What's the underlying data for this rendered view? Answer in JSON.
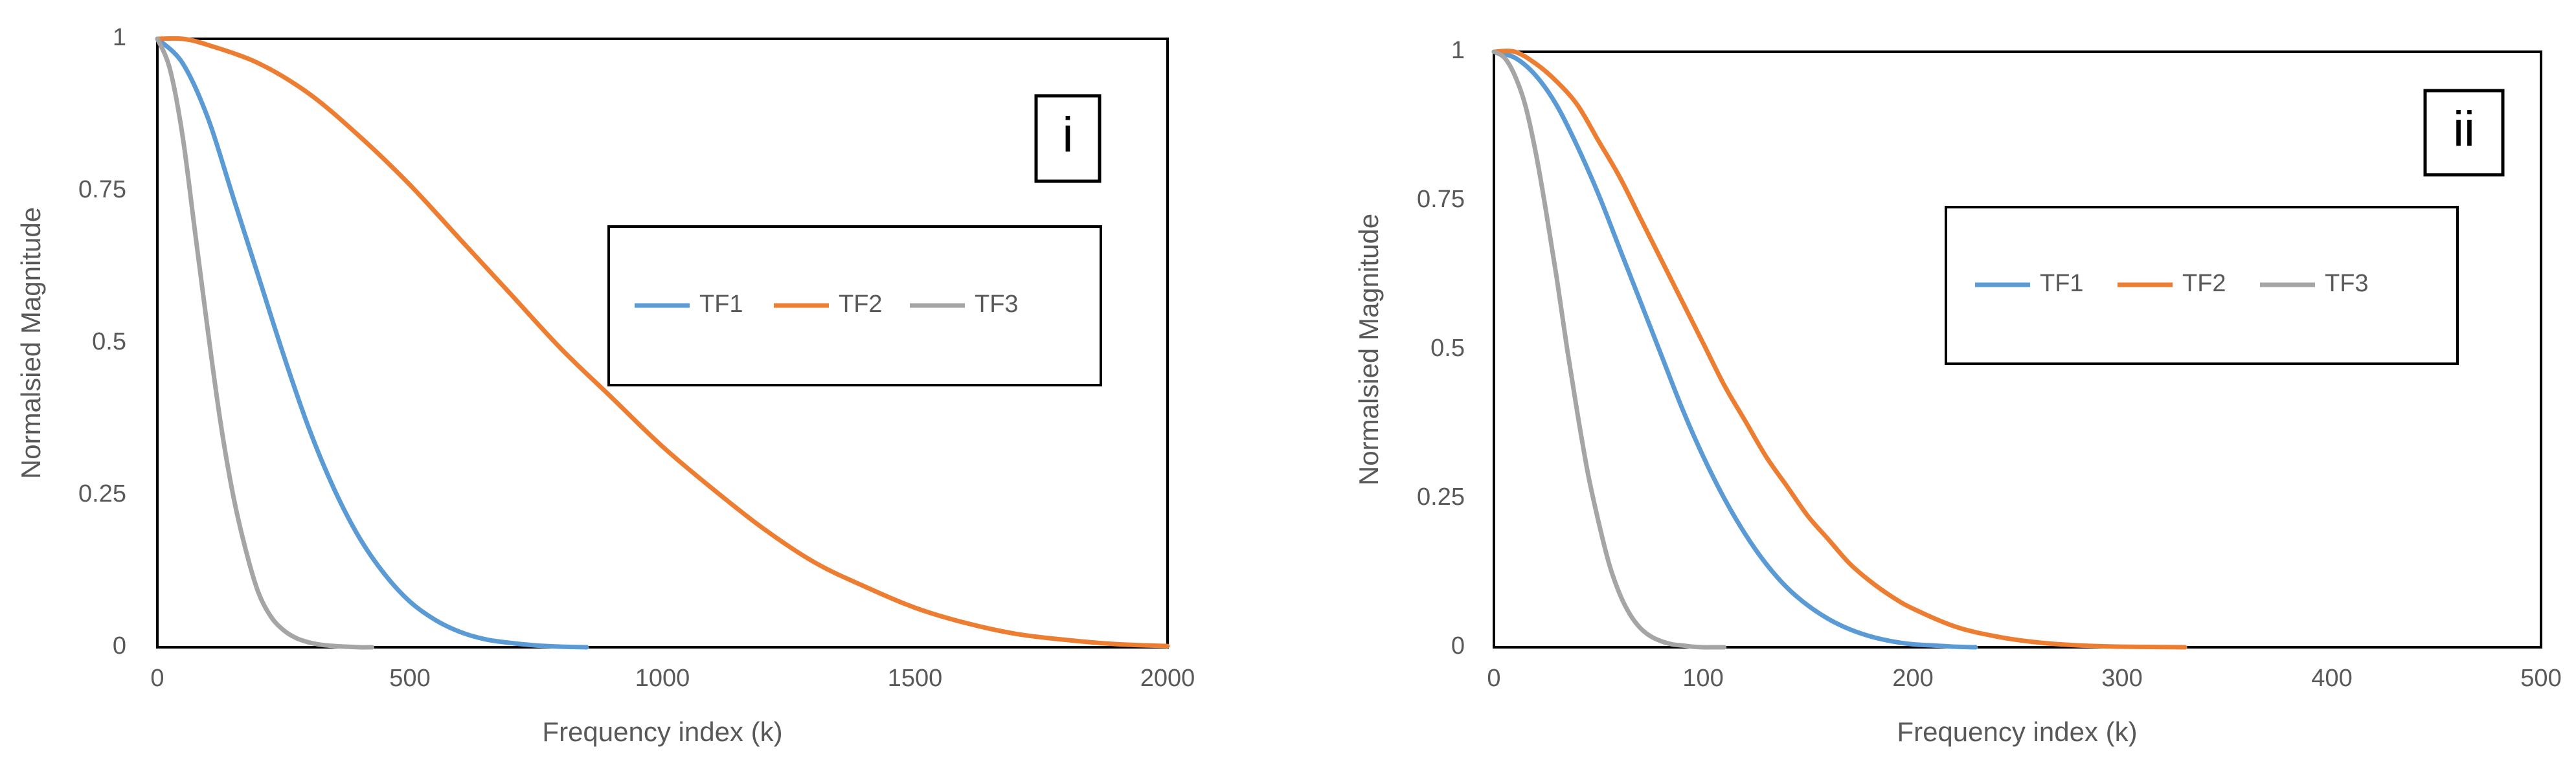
{
  "chart_data": [
    {
      "type": "line",
      "panel_label": "i",
      "xlabel": "Frequency index (k)",
      "ylabel": "Normalsied  Magnitude",
      "xlim": [
        0,
        2000
      ],
      "ylim": [
        0,
        1
      ],
      "x_ticks": [
        "0",
        "500",
        "1000",
        "1500",
        "2000"
      ],
      "y_ticks": [
        "0",
        "0.25",
        "0.5",
        "0.75",
        "1"
      ],
      "grid": false,
      "legend_position": "right-middle",
      "series": [
        {
          "name": "TF1",
          "color": "#5b9bd5",
          "x": [
            0,
            50,
            100,
            150,
            200,
            250,
            300,
            350,
            400,
            450,
            500,
            550,
            600,
            650,
            700,
            750,
            800,
            850
          ],
          "y": [
            1.0,
            0.96,
            0.87,
            0.74,
            0.61,
            0.48,
            0.36,
            0.26,
            0.18,
            0.12,
            0.075,
            0.045,
            0.025,
            0.013,
            0.007,
            0.003,
            0.001,
            0.0
          ]
        },
        {
          "name": "TF2",
          "color": "#ed7d31",
          "x": [
            0,
            50,
            100,
            200,
            300,
            400,
            500,
            600,
            700,
            800,
            900,
            1000,
            1100,
            1200,
            1300,
            1400,
            1500,
            1600,
            1700,
            1800,
            1900,
            2000
          ],
          "y": [
            1.0,
            1.0,
            0.99,
            0.96,
            0.91,
            0.84,
            0.76,
            0.67,
            0.58,
            0.49,
            0.41,
            0.33,
            0.26,
            0.195,
            0.14,
            0.1,
            0.065,
            0.04,
            0.022,
            0.012,
            0.005,
            0.002
          ]
        },
        {
          "name": "TF3",
          "color": "#a5a5a5",
          "x": [
            0,
            25,
            50,
            75,
            100,
            125,
            150,
            175,
            200,
            225,
            250,
            275,
            300,
            325,
            350,
            375,
            400,
            425
          ],
          "y": [
            1.0,
            0.95,
            0.84,
            0.68,
            0.52,
            0.37,
            0.25,
            0.16,
            0.09,
            0.05,
            0.028,
            0.015,
            0.008,
            0.004,
            0.002,
            0.001,
            0.0,
            0.0
          ]
        }
      ]
    },
    {
      "type": "line",
      "panel_label": "ii",
      "xlabel": "Frequency index (k)",
      "ylabel": "Normalsied  Magnitude",
      "xlim": [
        0,
        500
      ],
      "ylim": [
        0,
        1
      ],
      "x_ticks": [
        "0",
        "100",
        "200",
        "300",
        "400",
        "500"
      ],
      "y_ticks": [
        "0",
        "0.25",
        "0.5",
        "0.75",
        "1"
      ],
      "grid": false,
      "legend_position": "right-middle",
      "series": [
        {
          "name": "TF1",
          "color": "#5b9bd5",
          "x": [
            0,
            10,
            20,
            30,
            40,
            50,
            60,
            70,
            80,
            90,
            100,
            110,
            120,
            130,
            140,
            150,
            160,
            170,
            180,
            190,
            200,
            210,
            220,
            230
          ],
          "y": [
            1.0,
            0.99,
            0.96,
            0.91,
            0.84,
            0.76,
            0.67,
            0.58,
            0.49,
            0.4,
            0.32,
            0.25,
            0.19,
            0.14,
            0.1,
            0.07,
            0.047,
            0.03,
            0.018,
            0.01,
            0.005,
            0.003,
            0.001,
            0.0
          ]
        },
        {
          "name": "TF2",
          "color": "#ed7d31",
          "x": [
            0,
            10,
            20,
            30,
            40,
            50,
            60,
            70,
            80,
            90,
            100,
            110,
            120,
            130,
            140,
            150,
            160,
            170,
            180,
            190,
            200,
            220,
            240,
            260,
            280,
            300,
            330
          ],
          "y": [
            1.0,
            1.0,
            0.98,
            0.95,
            0.91,
            0.85,
            0.79,
            0.72,
            0.65,
            0.58,
            0.51,
            0.44,
            0.38,
            0.32,
            0.27,
            0.22,
            0.18,
            0.14,
            0.11,
            0.085,
            0.065,
            0.035,
            0.018,
            0.008,
            0.003,
            0.001,
            0.0
          ]
        },
        {
          "name": "TF3",
          "color": "#a5a5a5",
          "x": [
            0,
            5,
            10,
            15,
            20,
            25,
            30,
            35,
            40,
            45,
            50,
            55,
            60,
            65,
            70,
            75,
            80,
            85,
            90,
            95,
            100,
            105,
            110
          ],
          "y": [
            1.0,
            0.99,
            0.96,
            0.91,
            0.83,
            0.73,
            0.62,
            0.5,
            0.39,
            0.29,
            0.21,
            0.14,
            0.09,
            0.055,
            0.032,
            0.018,
            0.01,
            0.005,
            0.003,
            0.001,
            0.0,
            0.0,
            0.0
          ]
        }
      ]
    }
  ]
}
